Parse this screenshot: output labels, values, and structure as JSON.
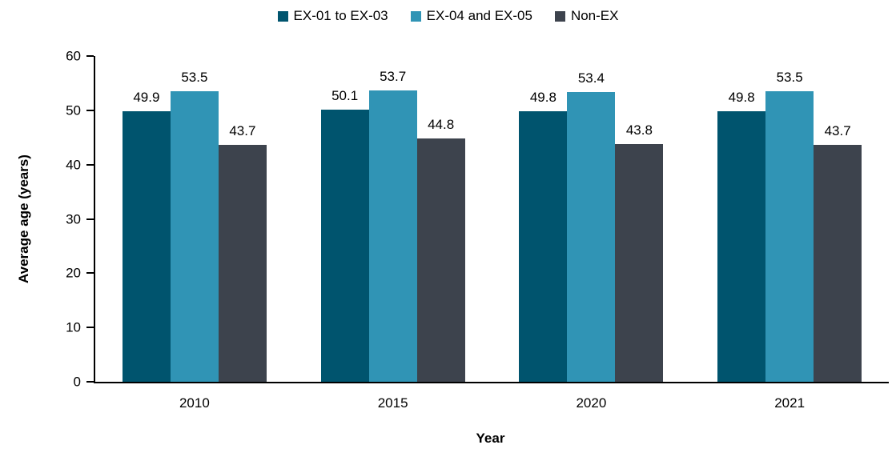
{
  "chart_data": {
    "type": "bar",
    "categories": [
      "2010",
      "2015",
      "2020",
      "2021"
    ],
    "series": [
      {
        "name": "EX-01 to EX-03",
        "color": "#00546e",
        "values": [
          49.9,
          50.1,
          49.8,
          49.8
        ]
      },
      {
        "name": "EX-04 and EX-05",
        "color": "#3094b5",
        "values": [
          53.5,
          53.7,
          53.4,
          53.5
        ]
      },
      {
        "name": "Non-EX",
        "color": "#3d434d",
        "values": [
          43.7,
          44.8,
          43.8,
          43.7
        ]
      }
    ],
    "title": "",
    "xlabel": "Year",
    "ylabel": "Average age (years)",
    "ylim": [
      0,
      60
    ],
    "yticks": [
      0,
      10,
      20,
      30,
      40,
      50,
      60
    ],
    "grid": false,
    "legend_position": "top",
    "axis_color": "#000000",
    "background_color": "#ffffff"
  }
}
